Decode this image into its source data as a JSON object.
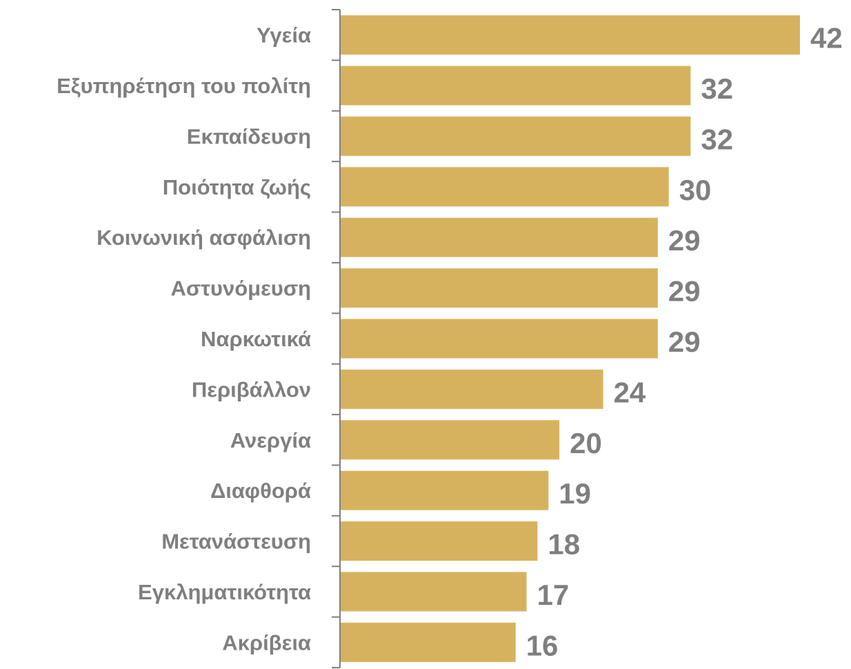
{
  "chart_data": {
    "type": "bar",
    "orientation": "horizontal",
    "title": "",
    "xlabel": "",
    "ylabel": "",
    "categories": [
      "Υγεία",
      "Εξυπηρέτηση του πολίτη",
      "Εκπαίδευση",
      "Ποιότητα ζωής",
      "Κοινωνική ασφάλιση",
      "Αστυνόμευση",
      "Ναρκωτικά",
      "Περιβάλλον",
      "Ανεργία",
      "Διαφθορά",
      "Μετανάστευση",
      "Εγκληματικότητα",
      "Ακρίβεια"
    ],
    "values": [
      42,
      32,
      32,
      30,
      29,
      29,
      29,
      24,
      20,
      19,
      18,
      17,
      16
    ],
    "xlim": [
      0,
      42
    ],
    "grid": false,
    "legend": "none",
    "colors": {
      "bar": "#d7b25e",
      "text": "#7f7f7f",
      "axis": "#7f7f7f"
    }
  }
}
